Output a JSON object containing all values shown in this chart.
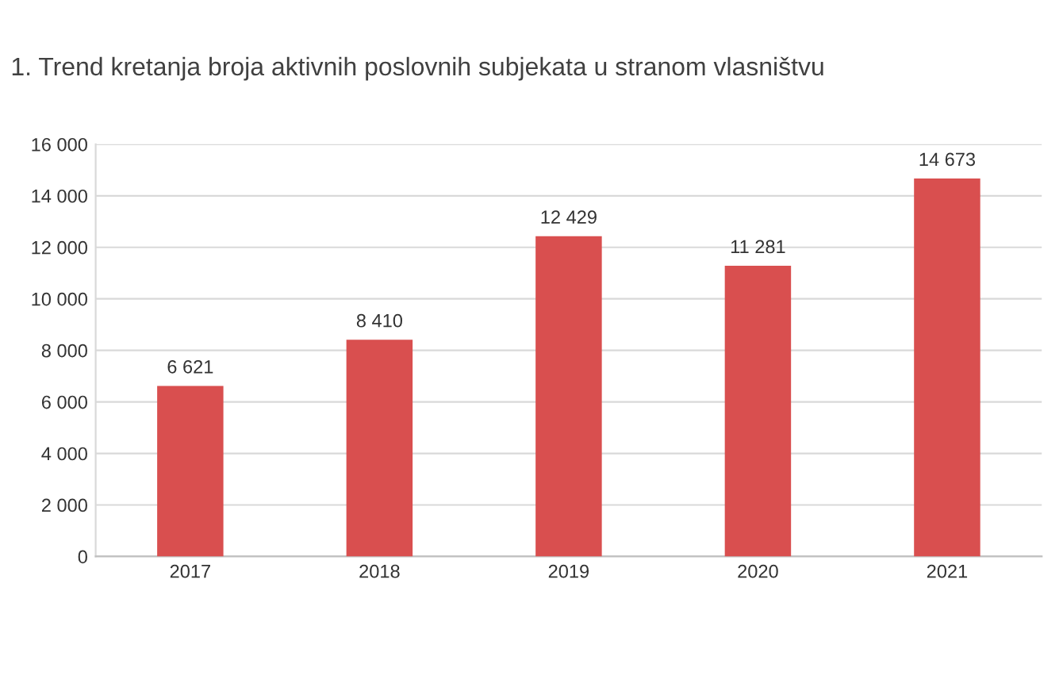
{
  "chart_data": {
    "type": "bar",
    "title": "1. Trend kretanja broja aktivnih poslovnih subjekata u stranom vlasništvu",
    "categories": [
      "2017",
      "2018",
      "2019",
      "2020",
      "2021"
    ],
    "values": [
      6621,
      8410,
      12429,
      11281,
      14673
    ],
    "value_labels": [
      "6 621",
      "8 410",
      "12 429",
      "11 281",
      "14 673"
    ],
    "color": "#d94f4f",
    "ylim": [
      0,
      16000
    ],
    "yticks": [
      0,
      {
        "value": 2000,
        "label": "2 000"
      },
      {
        "value": 4000,
        "label": "4 000"
      },
      {
        "value": 6000,
        "label": "6 000"
      },
      {
        "value": 8000,
        "label": "8 000"
      },
      {
        "value": 10000,
        "label": "10 000"
      },
      {
        "value": 12000,
        "label": "12 000"
      },
      {
        "value": 14000,
        "label": "14 000"
      },
      {
        "value": 16000,
        "label": "16 000"
      }
    ],
    "grid": "y"
  }
}
